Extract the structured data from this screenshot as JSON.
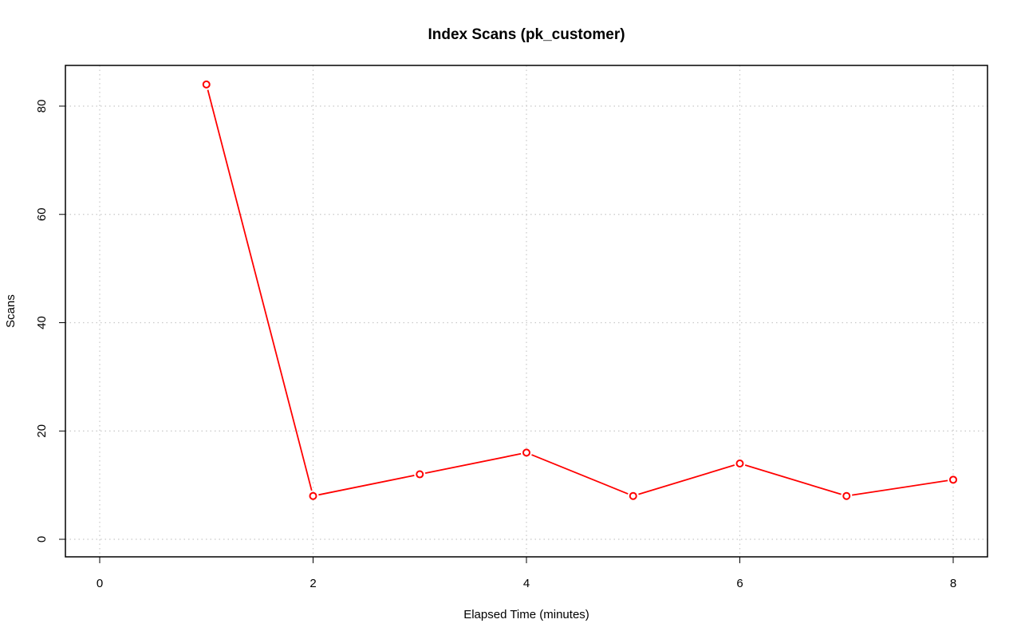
{
  "chart_data": {
    "type": "line",
    "title": "Index Scans (pk_customer)",
    "xlabel": "Elapsed Time (minutes)",
    "ylabel": "Scans",
    "xlim": [
      0,
      8
    ],
    "ylim": [
      0,
      80
    ],
    "x_ticks": [
      0,
      2,
      4,
      6,
      8
    ],
    "y_ticks": [
      0,
      20,
      40,
      60,
      80
    ],
    "grid": true,
    "series": [
      {
        "color": "#ff0000",
        "x": [
          1,
          2,
          3,
          4,
          5,
          6,
          7,
          8
        ],
        "y": [
          84,
          8,
          12,
          16,
          8,
          14,
          8,
          11
        ]
      }
    ]
  }
}
